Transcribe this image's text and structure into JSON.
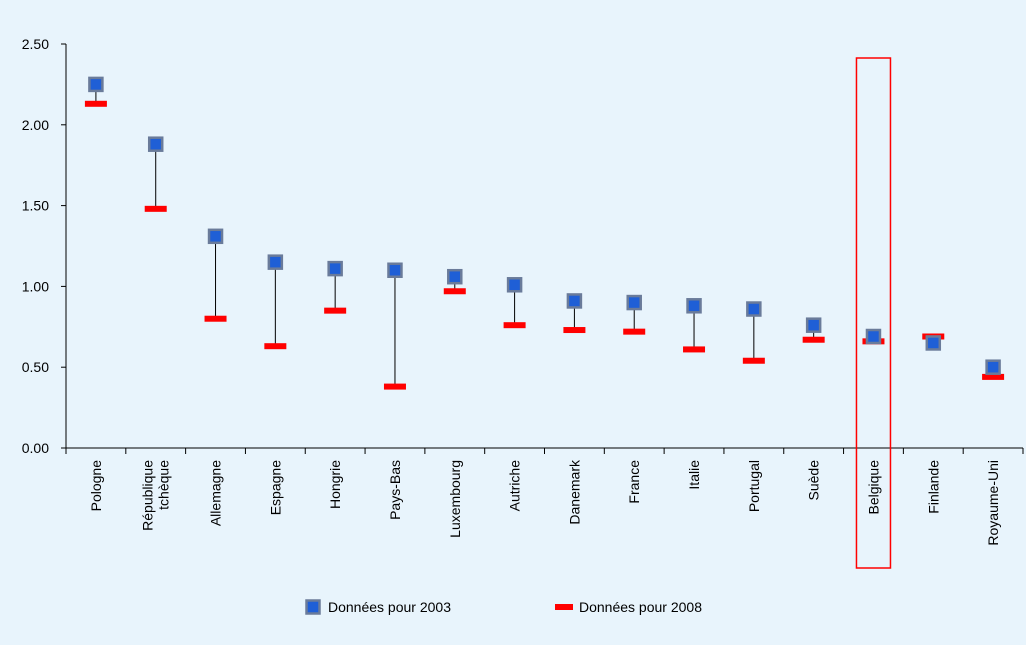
{
  "header": {
    "title_partial": "",
    "title_color": "#1f3fd6"
  },
  "chart_data": {
    "type": "scatter",
    "title": "",
    "xlabel": "",
    "ylabel": "",
    "ylim": [
      0,
      2.5
    ],
    "yticks": [
      "0.00",
      "0.50",
      "1.00",
      "1.50",
      "2.00",
      "2.50"
    ],
    "grid": false,
    "categories": [
      "Pologne",
      "République tchèque",
      "Allemagne",
      "Espagne",
      "Hongrie",
      "Pays-Bas",
      "Luxembourg",
      "Autriche",
      "Danemark",
      "France",
      "Italie",
      "Portugal",
      "Suède",
      "Belgique",
      "Finlande",
      "Royaume-Uni"
    ],
    "series": [
      {
        "name": "Données pour 2003",
        "marker": "square",
        "color": "#1f5fd6",
        "border_color": "#6a7b9a",
        "values": [
          2.25,
          1.88,
          1.31,
          1.15,
          1.11,
          1.1,
          1.06,
          1.01,
          0.91,
          0.9,
          0.88,
          0.86,
          0.76,
          0.69,
          0.65,
          0.5
        ]
      },
      {
        "name": "Données pour 2008",
        "marker": "dash",
        "color": "#ff0000",
        "values": [
          2.13,
          1.48,
          0.8,
          0.63,
          0.85,
          0.38,
          0.97,
          0.76,
          0.73,
          0.72,
          0.61,
          0.54,
          0.67,
          0.66,
          0.69,
          0.44
        ]
      }
    ],
    "highlight": {
      "category": "Belgique",
      "color": "#ff0000"
    },
    "legend_position": "bottom",
    "connector_color": "#000000"
  }
}
